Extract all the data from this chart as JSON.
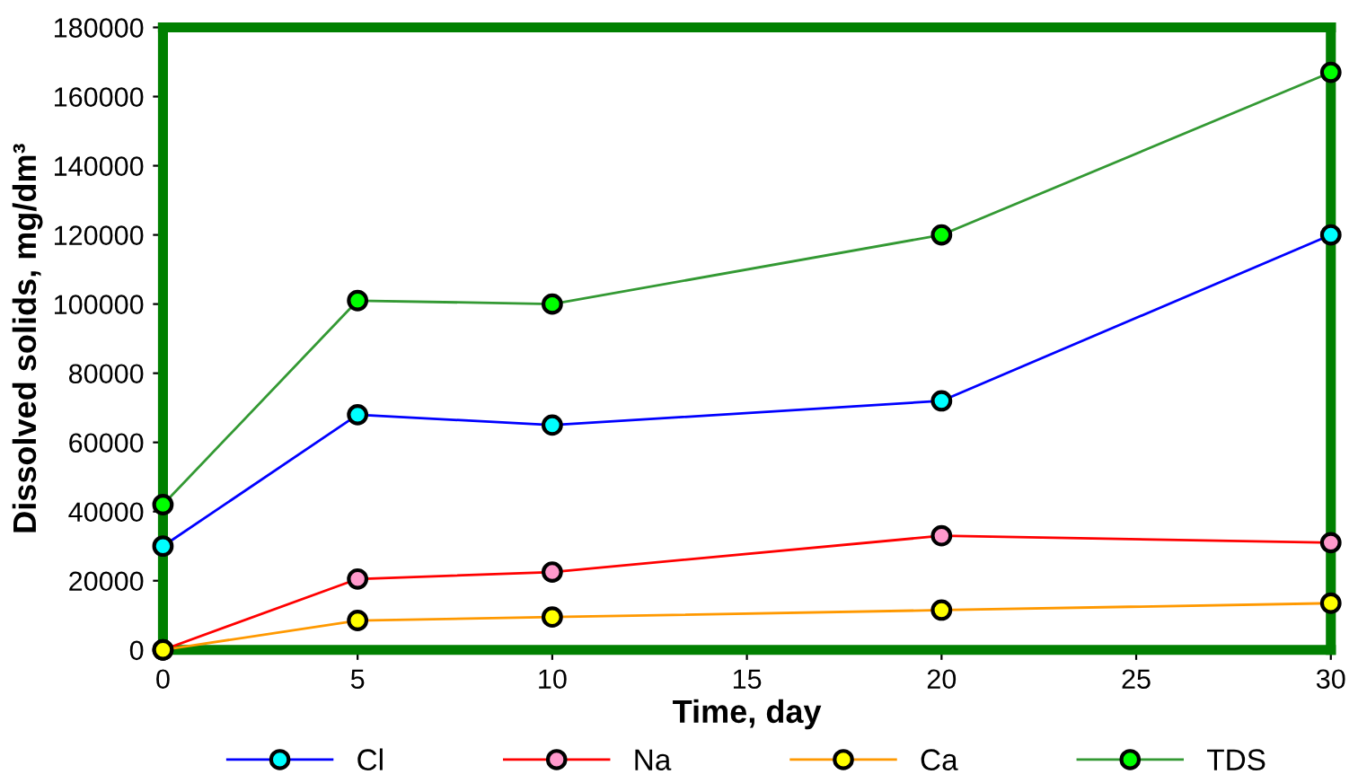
{
  "chart_data": {
    "type": "line",
    "xlabel": "Time, day",
    "ylabel": "Dissolved solids, mg/dm³",
    "x": [
      0,
      5,
      10,
      20,
      30
    ],
    "series": [
      {
        "name": "Cl",
        "color": "#0000ff",
        "colors": [
          "#00ffff",
          "#00ffff",
          "#00ffff",
          "#00ffff",
          "#00ffff"
        ],
        "values": [
          30000,
          68000,
          65000,
          72000,
          120000
        ]
      },
      {
        "name": "Na",
        "color": "#ff0000",
        "colors": [
          "#ff99cc",
          "#ff99cc",
          "#ff99cc",
          "#ff99cc",
          "#ff99cc"
        ],
        "values": [
          0,
          20500,
          22500,
          33000,
          31000
        ]
      },
      {
        "name": "Ca",
        "color": "#ff9900",
        "colors": [
          "#ffff00",
          "#ffff00",
          "#ffff00",
          "#ffff00",
          "#ffff00"
        ],
        "values": [
          0,
          8500,
          9500,
          11500,
          13500
        ]
      },
      {
        "name": "TDS",
        "color": "#339933",
        "colors": [
          "#00ff00",
          "#00ff00",
          "#00ff00",
          "#00ff00",
          "#00ff00"
        ],
        "values": [
          42000,
          101000,
          100000,
          120000,
          167000
        ]
      }
    ],
    "xlim": [
      0,
      30
    ],
    "xticks": [
      0,
      5,
      10,
      15,
      20,
      25,
      30
    ],
    "ylim": [
      0,
      180000
    ],
    "yticks": [
      0,
      20000,
      40000,
      60000,
      80000,
      100000,
      120000,
      140000,
      160000,
      180000
    ],
    "marker": "circle",
    "line_style": "solid",
    "grid": false,
    "legend": "bottom"
  }
}
